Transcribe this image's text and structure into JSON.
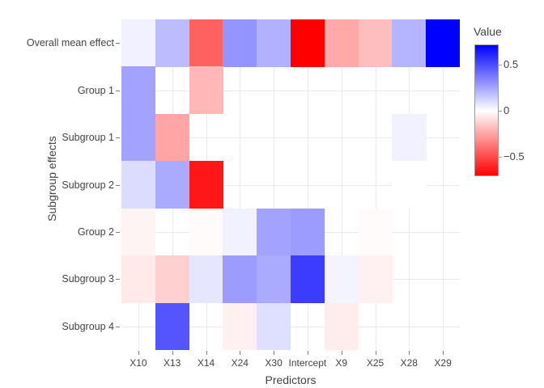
{
  "chart_data": {
    "type": "heatmap",
    "title": "",
    "xlabel": "Predictors",
    "ylabel": "Subgroup effects",
    "x_categories": [
      "X10",
      "X13",
      "X14",
      "X24",
      "X30",
      "Intercept",
      "X9",
      "X25",
      "X28",
      "X29"
    ],
    "y_categories": [
      "Overall mean effect",
      "Group 1",
      "Subgroup 1",
      "Subgroup 2",
      "Group 2",
      "Subgroup 3",
      "Subgroup 4"
    ],
    "rows": [
      [
        0.04,
        0.19,
        -0.44,
        0.3,
        0.22,
        -0.71,
        -0.24,
        -0.18,
        0.21,
        0.72
      ],
      [
        0.26,
        null,
        -0.2,
        null,
        null,
        null,
        null,
        null,
        null,
        null
      ],
      [
        0.26,
        -0.25,
        null,
        null,
        null,
        null,
        null,
        null,
        0.04,
        null
      ],
      [
        0.1,
        0.24,
        -0.65,
        null,
        null,
        null,
        null,
        null,
        0.0,
        null
      ],
      [
        -0.03,
        null,
        -0.01,
        0.04,
        0.26,
        0.28,
        null,
        -0.01,
        null,
        null
      ],
      [
        -0.06,
        -0.13,
        0.07,
        0.28,
        0.24,
        0.55,
        0.03,
        -0.04,
        null,
        null
      ],
      [
        null,
        0.48,
        null,
        -0.04,
        0.09,
        null,
        -0.05,
        null,
        null,
        null
      ]
    ],
    "colorbar": {
      "title": "Value",
      "tick_labels": [
        "0.5",
        "0",
        "−0.5"
      ],
      "tick_values": [
        0.5,
        0,
        -0.5
      ],
      "cmax": 0.72,
      "cmin": -0.71,
      "max_color": "#0000FF",
      "zero_color": "#FFFFFF",
      "min_color": "#FF0000"
    },
    "layout_hints": {
      "grid": true,
      "grid_at_category_centers": true,
      "legend_position": "right",
      "background": "#FFFFFF"
    }
  }
}
